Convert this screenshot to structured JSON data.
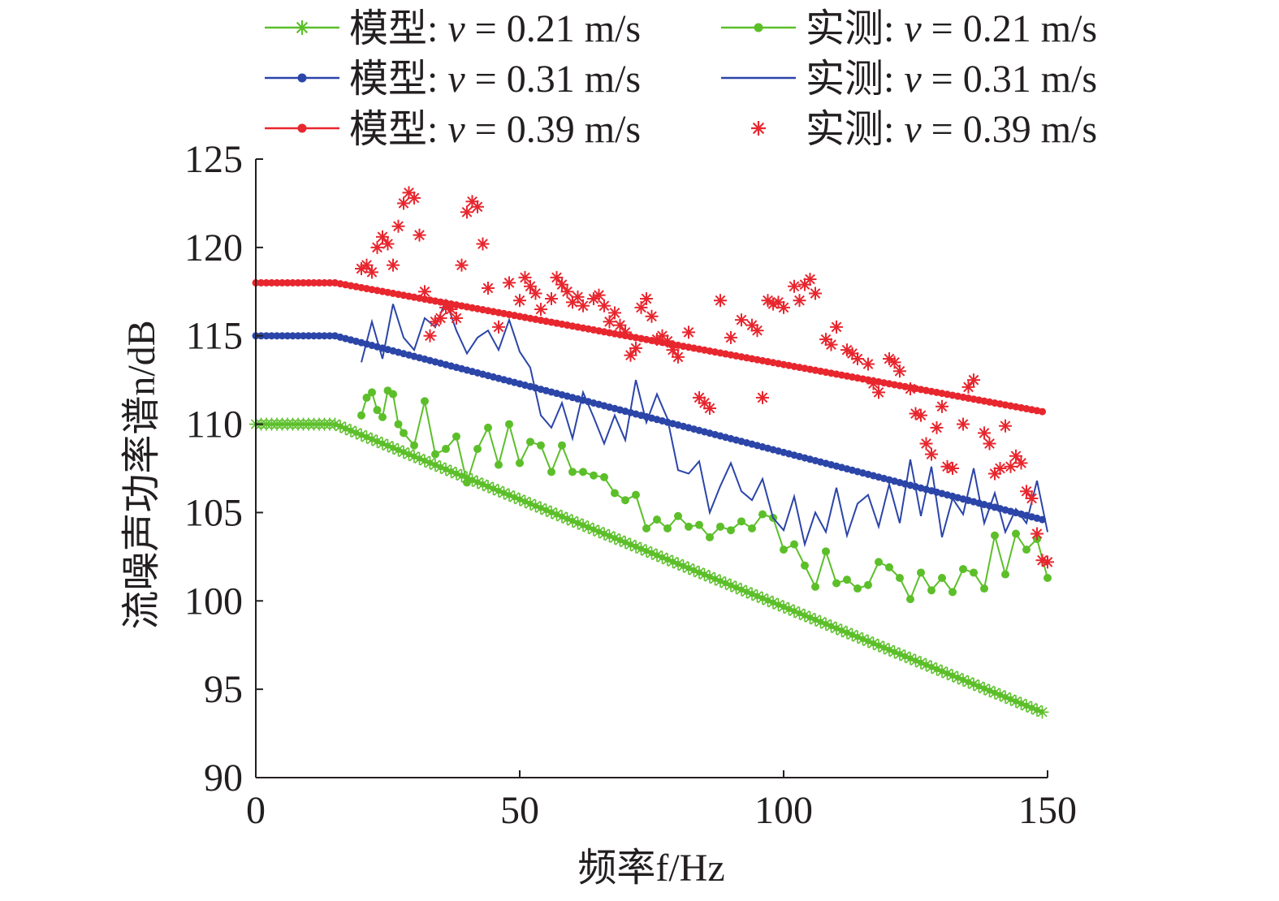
{
  "chart_data": {
    "type": "line",
    "title": "",
    "xlabel": "频率f/Hz",
    "ylabel": "流噪声功率谱n/dB",
    "xlim": [
      0,
      150
    ],
    "ylim": [
      90,
      125
    ],
    "xticks": [
      0,
      50,
      100,
      150
    ],
    "yticks": [
      90,
      95,
      100,
      105,
      110,
      115,
      120,
      125
    ],
    "grid": false,
    "legend_position": "top",
    "colors": {
      "green": "#5cbf2a",
      "blue": "#2b45a8",
      "red": "#e8262e",
      "axis": "#231f20"
    },
    "series": [
      {
        "name": "模型: v = 0.21 m/s",
        "label_prefix": "模型: ",
        "label_var": "v",
        "label_value": " = 0.21 m/s",
        "kind": "model",
        "color": "#5cbf2a",
        "marker": "asterisk",
        "model": {
          "y0": 110.0,
          "f0": 15,
          "slope": -0.1216
        }
      },
      {
        "name": "实测: v = 0.21 m/s",
        "label_prefix": "实测: ",
        "label_var": "v",
        "label_value": " = 0.21 m/s",
        "kind": "measured",
        "color": "#5cbf2a",
        "marker": "dot",
        "line": true,
        "x": [
          20,
          21,
          22,
          23,
          24,
          25,
          26,
          27,
          28,
          30,
          32,
          34,
          36,
          38,
          40,
          42,
          44,
          46,
          48,
          50,
          52,
          54,
          56,
          58,
          60,
          62,
          64,
          66,
          68,
          70,
          72,
          74,
          76,
          78,
          80,
          82,
          84,
          86,
          88,
          90,
          92,
          94,
          96,
          98,
          100,
          102,
          104,
          106,
          108,
          110,
          112,
          114,
          116,
          118,
          120,
          122,
          124,
          126,
          128,
          130,
          132,
          134,
          136,
          138,
          140,
          142,
          144,
          146,
          148,
          150
        ],
        "y": [
          110.5,
          111.5,
          111.8,
          110.8,
          110.4,
          111.9,
          111.7,
          110.0,
          109.5,
          108.8,
          111.3,
          108.3,
          108.6,
          109.3,
          106.7,
          108.6,
          109.8,
          107.7,
          110.0,
          107.8,
          109.0,
          108.8,
          107.3,
          108.8,
          107.3,
          107.3,
          107.1,
          107.0,
          106.1,
          105.7,
          106.0,
          104.1,
          104.6,
          104.1,
          104.8,
          104.2,
          104.3,
          103.6,
          104.2,
          104.0,
          104.5,
          104.1,
          104.9,
          104.7,
          102.9,
          103.2,
          102.0,
          100.8,
          102.8,
          101.0,
          101.2,
          100.7,
          100.9,
          102.2,
          101.9,
          101.3,
          100.1,
          101.6,
          100.6,
          101.3,
          100.5,
          101.8,
          101.6,
          100.7,
          103.7,
          101.5,
          103.8,
          102.9,
          103.5,
          101.3
        ]
      },
      {
        "name": "模型: v = 0.31 m/s",
        "label_prefix": "模型: ",
        "label_var": "v",
        "label_value": " = 0.31 m/s",
        "kind": "model",
        "color": "#2b45a8",
        "marker": "dot",
        "model": {
          "y0": 115.0,
          "f0": 15,
          "slope": -0.0776
        }
      },
      {
        "name": "实测: v = 0.31 m/s",
        "label_prefix": "实测: ",
        "label_var": "v",
        "label_value": " = 0.31 m/s",
        "kind": "measured",
        "color": "#2b45a8",
        "marker": "none",
        "line": true,
        "x": [
          20,
          22,
          24,
          26,
          28,
          30,
          32,
          34,
          36,
          38,
          40,
          42,
          44,
          46,
          48,
          50,
          52,
          54,
          56,
          58,
          60,
          62,
          64,
          66,
          68,
          70,
          72,
          74,
          76,
          78,
          80,
          82,
          84,
          86,
          88,
          90,
          92,
          94,
          96,
          98,
          100,
          102,
          104,
          106,
          108,
          110,
          112,
          114,
          116,
          118,
          120,
          122,
          124,
          126,
          128,
          130,
          132,
          134,
          136,
          138,
          140,
          142,
          144,
          146,
          148,
          150
        ],
        "y": [
          113.5,
          115.8,
          113.7,
          116.8,
          114.9,
          114.2,
          116.0,
          115.5,
          117.0,
          115.3,
          114.0,
          114.9,
          115.3,
          114.2,
          115.9,
          114.1,
          113.2,
          110.5,
          109.8,
          111.2,
          109.2,
          111.8,
          110.4,
          108.9,
          110.5,
          109.1,
          112.5,
          110.1,
          111.7,
          110.3,
          107.4,
          107.2,
          107.9,
          105.0,
          106.5,
          107.8,
          106.2,
          105.7,
          106.9,
          104.7,
          104.0,
          105.9,
          103.2,
          105.0,
          103.9,
          106.4,
          103.7,
          105.5,
          106.0,
          104.2,
          106.6,
          104.4,
          108.0,
          104.8,
          107.6,
          103.6,
          105.8,
          104.9,
          107.5,
          104.4,
          106.1,
          103.9,
          105.2,
          104.4,
          106.8,
          103.9
        ]
      },
      {
        "name": "模型: v = 0.39 m/s",
        "label_prefix": "模型: ",
        "label_var": "v",
        "label_value": " = 0.39 m/s",
        "kind": "model",
        "color": "#e8262e",
        "marker": "dot",
        "model": {
          "y0": 118.0,
          "f0": 15,
          "slope": -0.0544
        }
      },
      {
        "name": "实测: v = 0.39 m/s",
        "label_prefix": "实测: ",
        "label_var": "v",
        "label_value": " = 0.39 m/s",
        "kind": "measured",
        "color": "#e8262e",
        "marker": "asterisk",
        "line": false,
        "x": [
          20,
          21,
          22,
          23,
          24,
          25,
          26,
          27,
          28,
          29,
          30,
          31,
          32,
          33,
          34,
          35,
          36,
          37,
          38,
          39,
          40,
          41,
          42,
          43,
          44,
          46,
          48,
          50,
          51,
          52,
          53,
          54,
          56,
          57,
          58,
          59,
          60,
          61,
          62,
          64,
          65,
          66,
          67,
          68,
          69,
          70,
          71,
          72,
          73,
          74,
          75,
          76,
          77,
          78,
          79,
          80,
          82,
          84,
          85,
          86,
          88,
          90,
          92,
          94,
          95,
          96,
          97,
          98,
          99,
          100,
          102,
          103,
          104,
          105,
          106,
          108,
          109,
          110,
          112,
          113,
          114,
          116,
          117,
          118,
          120,
          121,
          122,
          124,
          125,
          126,
          127,
          128,
          129,
          130,
          131,
          132,
          134,
          135,
          136,
          138,
          139,
          140,
          141,
          142,
          143,
          144,
          145,
          146,
          147,
          148,
          149,
          150
        ],
        "y": [
          118.8,
          119.0,
          118.6,
          120.0,
          120.6,
          120.2,
          119.0,
          121.2,
          122.5,
          123.1,
          122.8,
          120.7,
          117.5,
          115.0,
          115.8,
          116.0,
          116.6,
          116.5,
          116.0,
          119.0,
          122.0,
          122.6,
          122.3,
          120.2,
          117.7,
          115.5,
          118.0,
          117.0,
          118.3,
          117.8,
          117.4,
          116.5,
          117.1,
          118.3,
          117.9,
          117.5,
          116.9,
          117.2,
          116.7,
          117.1,
          117.3,
          116.7,
          115.8,
          116.3,
          115.6,
          115.2,
          113.9,
          114.3,
          116.6,
          117.1,
          116.1,
          114.8,
          115.0,
          114.7,
          114.2,
          113.8,
          115.2,
          111.5,
          111.2,
          110.9,
          117.0,
          114.9,
          115.9,
          115.6,
          115.3,
          111.5,
          117.0,
          116.8,
          116.9,
          116.6,
          117.8,
          117.0,
          117.9,
          118.2,
          117.4,
          114.8,
          114.5,
          115.5,
          114.2,
          114.0,
          113.7,
          113.4,
          112.3,
          111.8,
          113.7,
          113.5,
          113.0,
          112.0,
          110.6,
          110.5,
          108.9,
          108.3,
          109.8,
          111.0,
          107.6,
          107.5,
          110.0,
          112.1,
          112.5,
          109.5,
          108.9,
          107.2,
          107.5,
          109.9,
          107.6,
          108.2,
          107.8,
          106.2,
          105.8,
          103.8,
          102.3,
          102.2
        ]
      }
    ]
  }
}
